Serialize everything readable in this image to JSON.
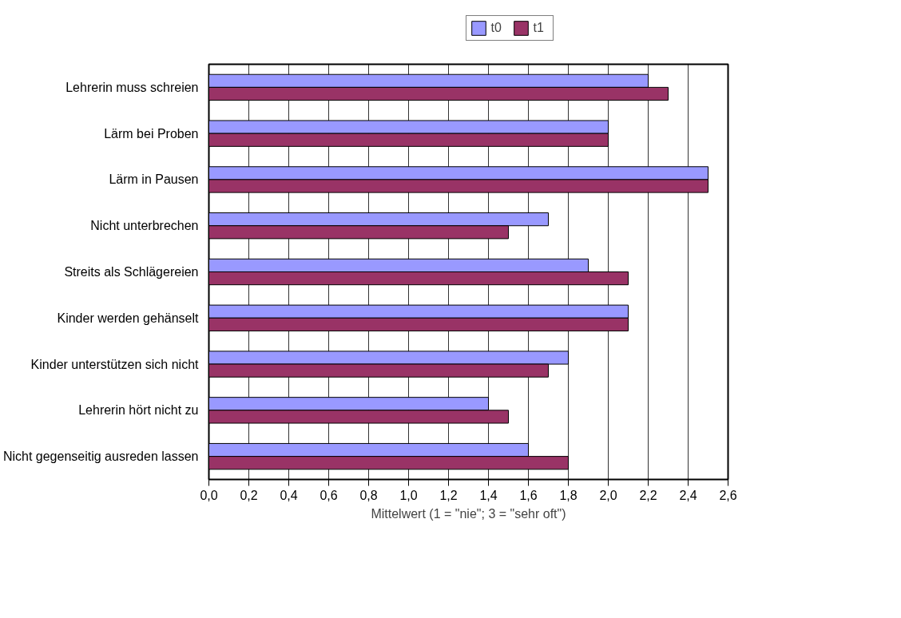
{
  "chart_data": {
    "type": "bar",
    "orientation": "horizontal",
    "categories": [
      "Lehrerin muss schreien",
      "Lärm bei Proben",
      "Lärm in Pausen",
      "Nicht unterbrechen",
      "Streits als Schlägereien",
      "Kinder werden gehänselt",
      "Kinder unterstützen sich nicht",
      "Lehrerin hört nicht zu",
      "Nicht gegenseitig ausreden lassen"
    ],
    "series": [
      {
        "name": "t0",
        "color": "#9999ff",
        "values": [
          2.2,
          2.0,
          2.5,
          1.7,
          1.9,
          2.1,
          1.8,
          1.4,
          1.6
        ]
      },
      {
        "name": "t1",
        "color": "#993366",
        "values": [
          2.3,
          2.0,
          2.5,
          1.5,
          2.1,
          2.1,
          1.7,
          1.5,
          1.8
        ]
      }
    ],
    "xlabel": "Mittelwert (1 = \"nie\"; 3 = \"sehr oft\")",
    "xlim": [
      0,
      2.6
    ],
    "xticks": [
      {
        "value": 0,
        "label": "0,0"
      },
      {
        "value": 0.2,
        "label": "0,2"
      },
      {
        "value": 0.4,
        "label": "0,4"
      },
      {
        "value": 0.6,
        "label": "0,6"
      },
      {
        "value": 0.8,
        "label": "0,8"
      },
      {
        "value": 1.0,
        "label": "1,0"
      },
      {
        "value": 1.2,
        "label": "1,2"
      },
      {
        "value": 1.4,
        "label": "1,4"
      },
      {
        "value": 1.6,
        "label": "1,6"
      },
      {
        "value": 1.8,
        "label": "1,8"
      },
      {
        "value": 2.0,
        "label": "2,0"
      },
      {
        "value": 2.2,
        "label": "2,2"
      },
      {
        "value": 2.4,
        "label": "2,4"
      },
      {
        "value": 2.6,
        "label": "2,6"
      }
    ],
    "grid": "x",
    "legend": "top"
  }
}
